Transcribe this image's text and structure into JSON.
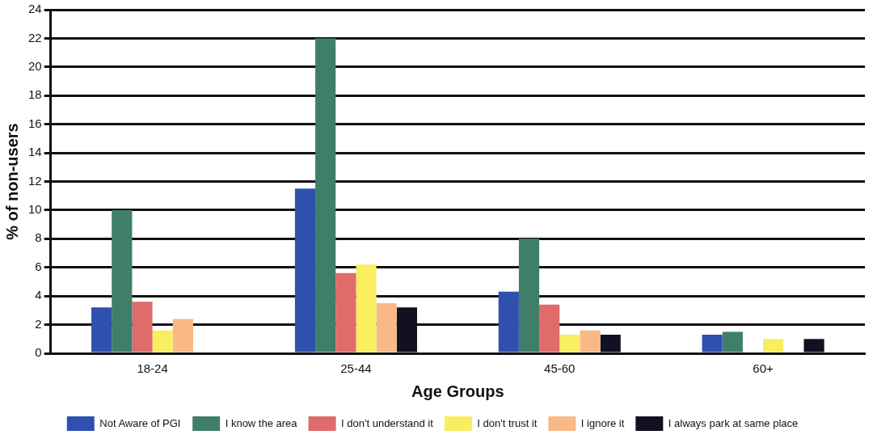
{
  "chart_data": {
    "type": "bar",
    "xlabel": "Age Groups",
    "ylabel": "% of non-users",
    "categories": [
      "18-24",
      "25-44",
      "45-60",
      "60+"
    ],
    "series": [
      {
        "name": "Not Aware of PGI",
        "color": "#3050b0",
        "values": [
          3.2,
          11.5,
          4.3,
          1.3
        ]
      },
      {
        "name": "I know the area",
        "color": "#3f7f6a",
        "values": [
          10,
          22,
          8,
          1.5
        ]
      },
      {
        "name": "I don't understand it",
        "color": "#e06b6b",
        "values": [
          3.6,
          5.6,
          3.4,
          0
        ]
      },
      {
        "name": "I don't trust it",
        "color": "#f8ee60",
        "values": [
          1.6,
          6.2,
          1.3,
          1
        ]
      },
      {
        "name": "I ignore it",
        "color": "#f8b987",
        "values": [
          2.4,
          3.5,
          1.6,
          0
        ]
      },
      {
        "name": "I always park at same place",
        "color": "#111122",
        "values": [
          0,
          3.2,
          1.3,
          1
        ]
      }
    ],
    "ylim": [
      0,
      24
    ],
    "yticks": [
      0,
      2,
      4,
      6,
      8,
      10,
      12,
      14,
      16,
      18,
      20,
      22,
      24
    ],
    "grid": "y",
    "legend": "bottom"
  }
}
